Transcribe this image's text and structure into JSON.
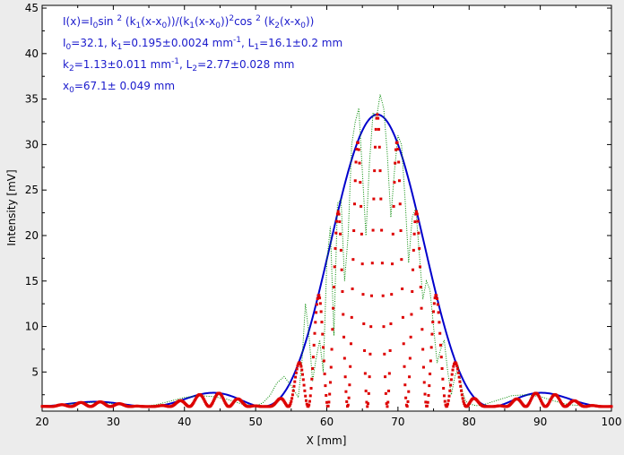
{
  "chart_data": {
    "type": "line",
    "xlabel": "X [mm]",
    "ylabel": "Intensity [mV]",
    "xlim": [
      20,
      100
    ],
    "ylim": [
      0.7,
      45.3
    ],
    "xticks": [
      20,
      30,
      40,
      50,
      60,
      70,
      80,
      90,
      100
    ],
    "yticks": [
      5,
      10,
      15,
      20,
      25,
      30,
      35,
      40,
      45
    ],
    "grid": false,
    "annotations": {
      "line1": {
        "a": "I(x)=I",
        "a_sub": "0",
        "b": "sin ",
        "b_sup": "2",
        "c": " (k",
        "c_sub": "1",
        "d": "(x-x",
        "d_sub": "0",
        "e": "))/(k",
        "e_sub": "1",
        "f": "(x-x",
        "f_sub": "0",
        "g": "))",
        "g_sup": "2",
        "h": "cos ",
        "h_sup": "2",
        "i": " (k",
        "i_sub": "2",
        "j": "(x-x",
        "j_sub": "0",
        "k": "))"
      },
      "line2": {
        "a": "I",
        "a_sub": "0",
        "b": "=32.1,  k",
        "b_sub": "1",
        "c": "=0.195±0.0024 mm",
        "c_sup": "-1",
        "d": ",   L",
        "d_sub": "1",
        "e": "=16.1±0.2 mm"
      },
      "line3": {
        "a": "k",
        "a_sub": "2",
        "b": "=1.13±0.011 mm",
        "b_sup": "-1",
        "c": ",   L",
        "c_sub": "2",
        "d": "=2.77±0.028 mm"
      },
      "line4": {
        "a": "x",
        "a_sub": "0",
        "b": "=67.1±  0.049 mm"
      }
    },
    "model": {
      "I0": 32.1,
      "k1": 0.195,
      "k2": 1.13,
      "x0": 67.1,
      "baseline": 1.2
    },
    "series": [
      {
        "role": "fit",
        "style": "dotted",
        "color": "#dd0000",
        "function": "baseline + I0*sinc^2(k1*(x-x0))*cos^2(k2*(x-x0))",
        "x_range": [
          20,
          100
        ],
        "x_step": 0.1
      },
      {
        "role": "envelope",
        "style": "solid",
        "color": "#0000cc",
        "function": "baseline + I0*sinc^2(k1*(x-x0))",
        "x_range": [
          20,
          100
        ],
        "x_step": 0.2
      },
      {
        "role": "measured",
        "style": "dotted",
        "color": "#008800",
        "x": [
          20,
          22,
          24,
          26,
          28,
          30,
          32,
          34,
          36,
          38,
          40,
          42,
          44,
          46,
          48,
          50,
          51,
          52,
          53,
          54,
          55,
          56,
          56.5,
          57,
          57.5,
          58,
          58.5,
          59,
          59.5,
          60,
          60.5,
          61,
          61.5,
          62,
          62.5,
          63,
          63.5,
          64,
          64.5,
          65,
          65.5,
          66,
          66.5,
          67,
          67.5,
          68,
          68.5,
          69,
          69.5,
          70,
          70.5,
          71,
          71.5,
          72,
          72.5,
          73,
          73.5,
          74,
          74.5,
          75,
          75.5,
          76,
          76.5,
          77,
          77.5,
          78,
          78.5,
          79,
          79.5,
          80,
          81,
          82,
          84,
          86,
          88,
          90,
          92,
          94,
          96,
          98,
          100
        ],
        "y": [
          1.2,
          1.3,
          1.5,
          1.6,
          1.7,
          1.5,
          1.3,
          1.2,
          1.4,
          1.8,
          2.2,
          2.4,
          2.3,
          2.0,
          1.5,
          1.3,
          1.6,
          2.4,
          3.8,
          4.5,
          3.5,
          2.2,
          6.0,
          12.5,
          9.0,
          4.0,
          6.5,
          8.5,
          5.0,
          17.0,
          21.0,
          9.0,
          23.5,
          24.0,
          15.0,
          20.0,
          30.0,
          32.5,
          34.0,
          27.0,
          20.0,
          28.0,
          33.5,
          33.0,
          35.5,
          34.0,
          29.0,
          22.0,
          27.0,
          31.0,
          30.0,
          24.0,
          17.0,
          22.0,
          23.0,
          18.0,
          13.0,
          15.0,
          14.0,
          10.0,
          6.0,
          7.5,
          8.5,
          5.0,
          2.5,
          4.5,
          5.5,
          3.0,
          1.8,
          1.5,
          1.3,
          1.4,
          1.9,
          2.4,
          2.5,
          2.3,
          1.8,
          1.4,
          1.3,
          1.2,
          1.2
        ]
      }
    ]
  }
}
